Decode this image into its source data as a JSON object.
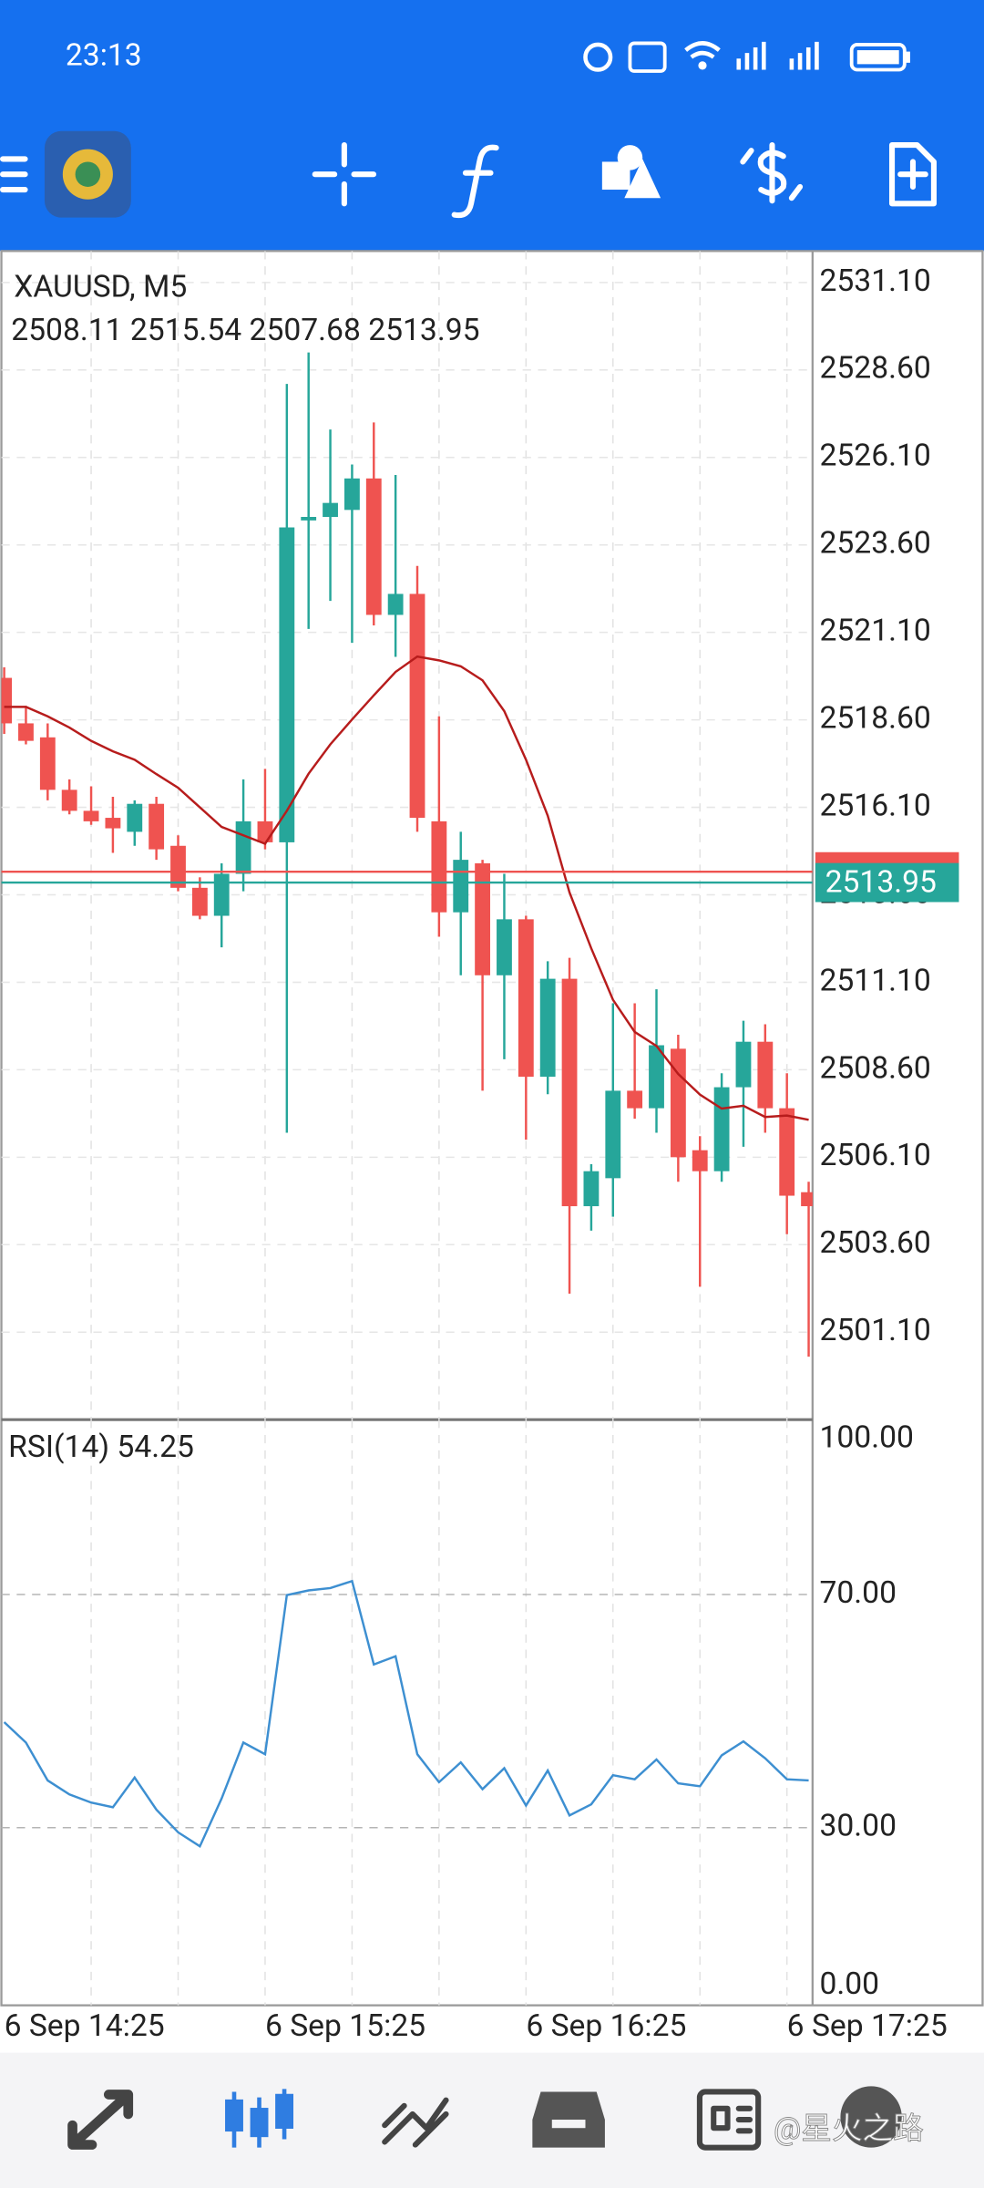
{
  "status_bar": {
    "time": "23:13"
  },
  "chart_data": [
    {
      "type": "candlestick",
      "title": "XAUUSD, M5",
      "subtitle": "2508.11 2515.54 2507.68 2513.95",
      "categories": [
        "6 Sep 14:25",
        null,
        null,
        null,
        null,
        null,
        null,
        null,
        null,
        null,
        null,
        null,
        "6 Sep 15:25",
        null,
        null,
        null,
        null,
        null,
        null,
        null,
        null,
        null,
        null,
        null,
        "6 Sep 16:25",
        null,
        null,
        null,
        null,
        null,
        null,
        null,
        null,
        null,
        null,
        null,
        "6 Sep 17:25",
        null
      ],
      "open": [
        2519.8,
        2518.5,
        2518.1,
        2516.6,
        2516.0,
        2515.8,
        2515.4,
        2516.2,
        2515.0,
        2513.8,
        2513.0,
        2514.2,
        2515.7,
        2515.1,
        2524.3,
        2524.4,
        2524.6,
        2525.5,
        2521.6,
        2522.2,
        2515.7,
        2513.1,
        2514.5,
        2511.3,
        2512.9,
        2508.4,
        2511.2,
        2504.7,
        2505.5,
        2508.0,
        2507.5,
        2509.2,
        2506.3,
        2505.7,
        2508.1,
        2509.4,
        2507.5,
        2505.1
      ],
      "high": [
        2520.1,
        2519.0,
        2518.5,
        2516.9,
        2516.7,
        2516.4,
        2516.3,
        2516.4,
        2515.3,
        2514.1,
        2514.5,
        2516.9,
        2517.2,
        2528.2,
        2529.1,
        2526.9,
        2525.9,
        2527.1,
        2525.6,
        2523.0,
        2518.7,
        2515.4,
        2514.6,
        2514.2,
        2513.0,
        2511.7,
        2511.8,
        2505.9,
        2510.5,
        2510.5,
        2510.9,
        2509.6,
        2506.7,
        2508.5,
        2510.0,
        2509.9,
        2508.5,
        2505.4
      ],
      "low": [
        2518.2,
        2517.9,
        2516.3,
        2515.9,
        2515.6,
        2514.8,
        2515.0,
        2514.6,
        2513.7,
        2512.9,
        2512.1,
        2513.7,
        2514.9,
        2506.8,
        2521.2,
        2522.0,
        2520.8,
        2521.3,
        2520.4,
        2515.4,
        2512.4,
        2511.3,
        2508.0,
        2508.9,
        2506.6,
        2507.9,
        2502.2,
        2504.0,
        2504.4,
        2507.2,
        2506.8,
        2505.4,
        2502.4,
        2505.4,
        2506.4,
        2506.8,
        2503.9,
        2500.4
      ],
      "close": [
        2518.5,
        2518.0,
        2516.6,
        2516.0,
        2515.7,
        2515.5,
        2516.2,
        2514.9,
        2513.8,
        2513.0,
        2514.2,
        2515.7,
        2515.1,
        2524.1,
        2524.4,
        2524.8,
        2525.5,
        2521.6,
        2522.2,
        2515.8,
        2513.1,
        2514.6,
        2511.3,
        2512.9,
        2508.4,
        2511.2,
        2504.7,
        2505.7,
        2508.0,
        2507.5,
        2509.3,
        2506.1,
        2505.7,
        2508.1,
        2509.4,
        2507.5,
        2505.0,
        2504.7
      ],
      "up_color": "#26a69a",
      "down_color": "#ef5350",
      "moving_average": {
        "color": "#b71c1c",
        "values": [
          2518.97,
          2518.97,
          2518.7,
          2518.38,
          2518.0,
          2517.7,
          2517.46,
          2517.05,
          2516.66,
          2516.1,
          2515.54,
          2515.3,
          2515.06,
          2516.0,
          2517.06,
          2517.9,
          2518.61,
          2519.3,
          2519.97,
          2520.41,
          2520.3,
          2520.13,
          2519.73,
          2518.85,
          2517.46,
          2515.86,
          2513.67,
          2512.07,
          2510.6,
          2509.68,
          2509.28,
          2508.48,
          2507.89,
          2507.49,
          2507.57,
          2507.25,
          2507.29,
          2507.17
        ]
      },
      "price_lines": [
        {
          "value": 2514.26,
          "color": "#ef5350"
        },
        {
          "value": 2513.95,
          "color": "#26a69a"
        }
      ],
      "ylim": [
        2498.6,
        2532.0
      ],
      "yticks": [
        {
          "value": 2531.1,
          "label": "2531.10"
        },
        {
          "value": 2528.6,
          "label": "2528.60"
        },
        {
          "value": 2526.1,
          "label": "2526.10"
        },
        {
          "value": 2523.6,
          "label": "2523.60"
        },
        {
          "value": 2521.1,
          "label": "2521.10"
        },
        {
          "value": 2518.6,
          "label": "2518.60"
        },
        {
          "value": 2516.1,
          "label": "2516.10"
        },
        {
          "value": 2513.6,
          "label": "2513.60"
        },
        {
          "value": 2511.1,
          "label": "2511.10"
        },
        {
          "value": 2508.6,
          "label": "2508.60"
        },
        {
          "value": 2506.1,
          "label": "2506.10"
        },
        {
          "value": 2503.6,
          "label": "2503.60"
        },
        {
          "value": 2501.1,
          "label": "2501.10"
        }
      ],
      "grid": true
    },
    {
      "type": "line",
      "title": "RSI(14) 54.25",
      "series": [
        {
          "color": "#3d8fd1",
          "values": [
            48.1,
            44.6,
            38.1,
            35.7,
            34.3,
            33.5,
            38.6,
            33.1,
            29.2,
            26.8,
            35.0,
            44.6,
            42.6,
            69.9,
            70.7,
            71.1,
            72.3,
            58.0,
            59.4,
            42.6,
            37.8,
            41.2,
            36.6,
            40.2,
            33.8,
            39.8,
            32.1,
            34.0,
            39.0,
            38.3,
            41.7,
            37.6,
            37.1,
            42.4,
            44.8,
            41.9,
            38.3,
            38.1
          ]
        }
      ],
      "ylim": [
        0,
        100
      ],
      "yticks": [
        {
          "value": 100,
          "label": "100.00"
        },
        {
          "value": 70,
          "label": "70.00"
        },
        {
          "value": 30,
          "label": "30.00"
        },
        {
          "value": 0,
          "label": "0.00"
        }
      ],
      "grid": true
    }
  ],
  "watermark": "@星火之路"
}
